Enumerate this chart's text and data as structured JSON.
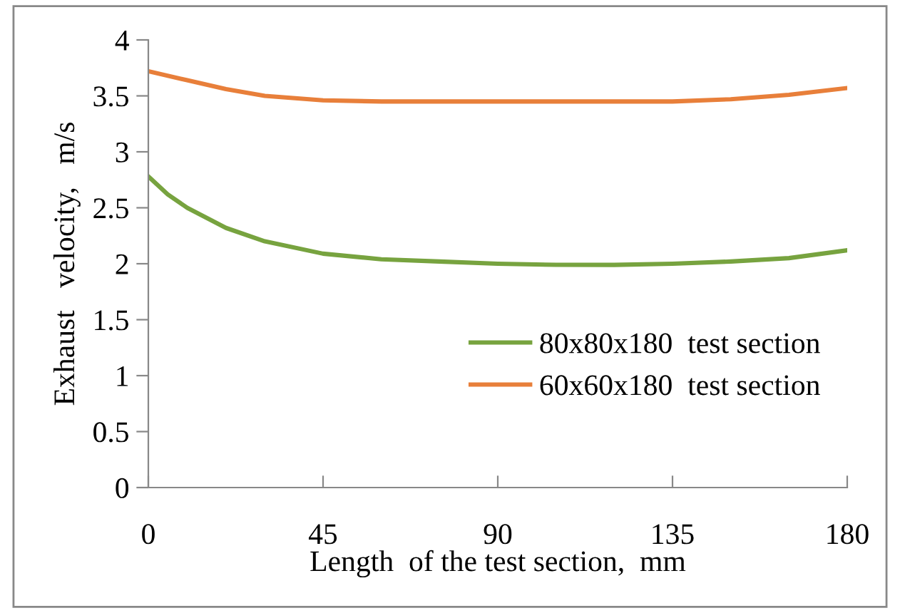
{
  "chart_data": {
    "type": "line",
    "xlabel": "Length  of the test section,  mm",
    "ylabel": "Exhaust   velocity,   m/s",
    "xlim": [
      0,
      180
    ],
    "xticks": [
      0,
      45,
      90,
      135,
      180
    ],
    "ylim": [
      0,
      4
    ],
    "yticks": [
      0,
      0.5,
      1,
      1.5,
      2,
      2.5,
      3,
      3.5,
      4
    ],
    "grid": false,
    "legend": "right",
    "marker": "none",
    "line_style": "solid",
    "series": [
      {
        "name": "80x80x180  test section",
        "color": "#77a33f",
        "x": [
          0,
          5,
          10,
          20,
          30,
          45,
          60,
          75,
          90,
          105,
          120,
          135,
          150,
          165,
          180
        ],
        "values": [
          2.78,
          2.62,
          2.5,
          2.32,
          2.2,
          2.09,
          2.04,
          2.02,
          2.0,
          1.99,
          1.99,
          2.0,
          2.02,
          2.05,
          2.12
        ]
      },
      {
        "name": "60x60x180  test section",
        "color": "#e87f3a",
        "x": [
          0,
          10,
          20,
          30,
          45,
          60,
          90,
          120,
          135,
          150,
          165,
          180
        ],
        "values": [
          3.72,
          3.64,
          3.56,
          3.5,
          3.46,
          3.45,
          3.45,
          3.45,
          3.45,
          3.47,
          3.51,
          3.57
        ]
      }
    ]
  }
}
